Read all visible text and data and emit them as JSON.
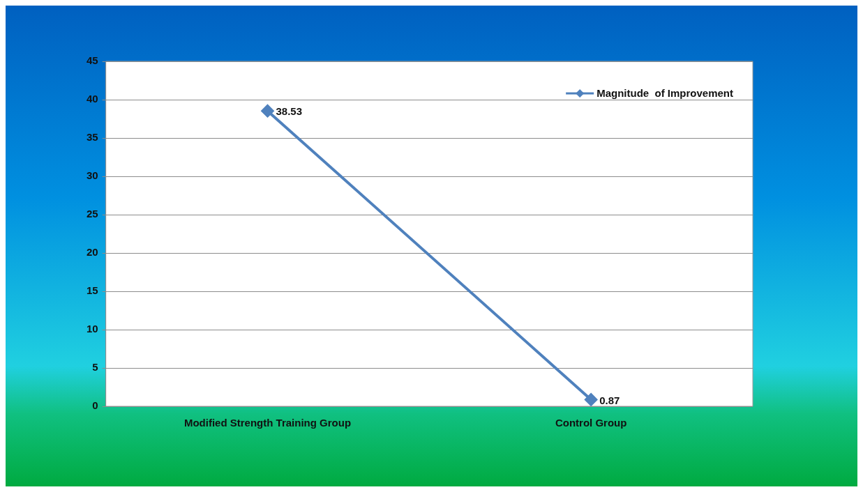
{
  "chart_data": {
    "type": "line",
    "categories": [
      "Modified Strength Training Group",
      "Control Group"
    ],
    "series": [
      {
        "name": "Magnitude  of Improvement",
        "color": "#4f81bd",
        "values": [
          38.53,
          0.87
        ]
      }
    ],
    "ylim": [
      0,
      45
    ],
    "yticks": [
      0,
      5,
      10,
      15,
      20,
      25,
      30,
      35,
      40,
      45
    ],
    "grid": "y",
    "legend": "top right",
    "marker": "diamond",
    "line_style": "solid",
    "data_labels": true
  }
}
